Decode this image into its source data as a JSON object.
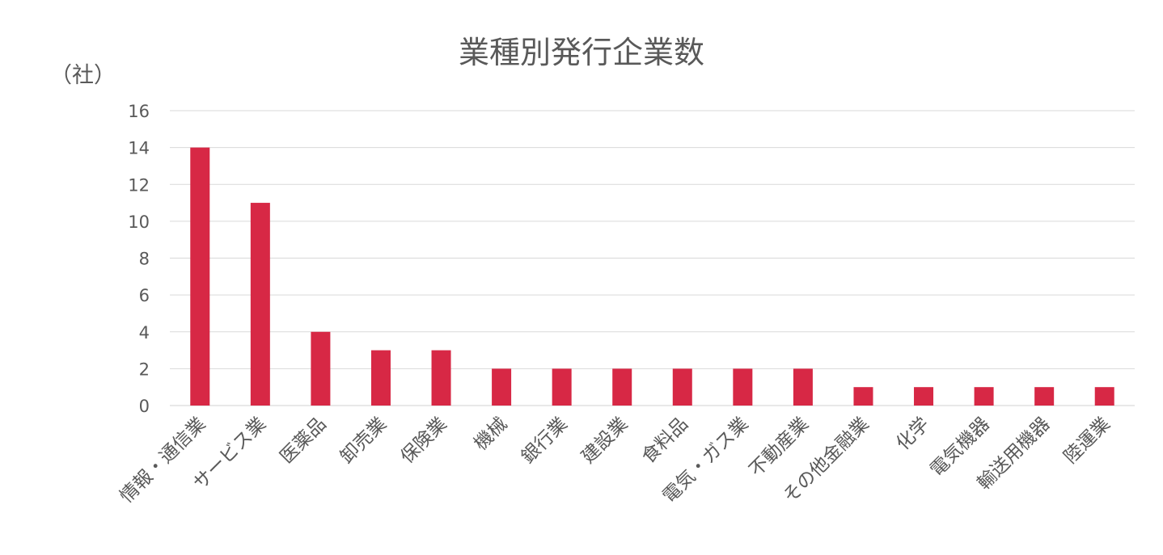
{
  "chart_data": {
    "type": "bar",
    "title": "業種別発行企業数",
    "unit_label": "（社）",
    "xlabel": "",
    "ylabel": "",
    "ylim": [
      0,
      16
    ],
    "yticks": [
      0,
      2,
      4,
      6,
      8,
      10,
      12,
      14,
      16
    ],
    "grid": true,
    "legend": "none",
    "bar_color": "#d72845",
    "categories": [
      "情報・通信業",
      "サービス業",
      "医薬品",
      "卸売業",
      "保険業",
      "機械",
      "銀行業",
      "建設業",
      "食料品",
      "電気・ガス業",
      "不動産業",
      "その他金融業",
      "化学",
      "電気機器",
      "輸送用機器",
      "陸運業"
    ],
    "values": [
      14,
      11,
      4,
      3,
      3,
      2,
      2,
      2,
      2,
      2,
      2,
      1,
      1,
      1,
      1,
      1
    ]
  }
}
